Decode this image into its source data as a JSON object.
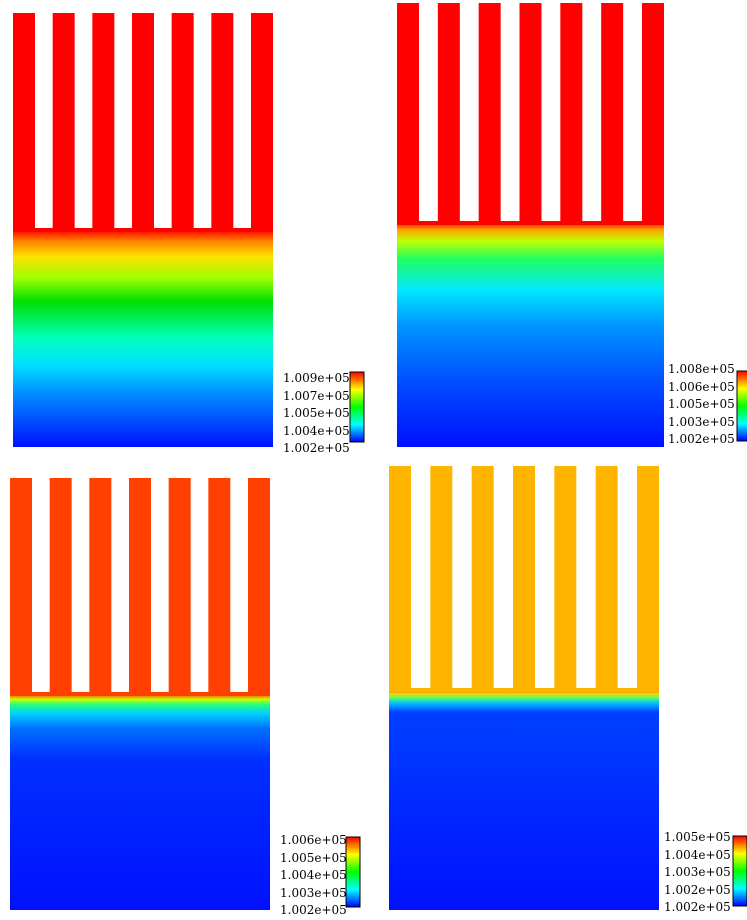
{
  "colormap": [
    "#0000ff",
    "#00ffff",
    "#00ff00",
    "#ffff00",
    "#ff0000"
  ],
  "panels": [
    {
      "id": "a",
      "colorbar_labels": [
        "1.009e+05",
        "1.007e+05",
        "1.005e+05",
        "1.004e+05",
        "1.002e+05"
      ],
      "fin_color": "#ff0000",
      "gradient_stops": [
        {
          "offset": 0.0,
          "color": "#ff0000"
        },
        {
          "offset": 0.05,
          "color": "#ff8000"
        },
        {
          "offset": 0.12,
          "color": "#ffe000"
        },
        {
          "offset": 0.22,
          "color": "#a0ff00"
        },
        {
          "offset": 0.33,
          "color": "#00e000"
        },
        {
          "offset": 0.5,
          "color": "#00ffc0"
        },
        {
          "offset": 0.62,
          "color": "#00e0ff"
        },
        {
          "offset": 0.75,
          "color": "#0090ff"
        },
        {
          "offset": 1.0,
          "color": "#0010ff"
        }
      ]
    },
    {
      "id": "b",
      "colorbar_labels": [
        "1.008e+05",
        "1.006e+05",
        "1.005e+05",
        "1.003e+05",
        "1.002e+05"
      ],
      "fin_color": "#ff0000",
      "gradient_stops": [
        {
          "offset": 0.0,
          "color": "#ff2000"
        },
        {
          "offset": 0.03,
          "color": "#ffa000"
        },
        {
          "offset": 0.08,
          "color": "#c0ff00"
        },
        {
          "offset": 0.16,
          "color": "#20ff60"
        },
        {
          "offset": 0.3,
          "color": "#00e8ff"
        },
        {
          "offset": 0.45,
          "color": "#0098ff"
        },
        {
          "offset": 0.7,
          "color": "#0050ff"
        },
        {
          "offset": 1.0,
          "color": "#0010ff"
        }
      ]
    },
    {
      "id": "c",
      "colorbar_labels": [
        "1.006e+05",
        "1.005e+05",
        "1.004e+05",
        "1.003e+05",
        "1.002e+05"
      ],
      "fin_color": "#ff4000",
      "gradient_stops": [
        {
          "offset": 0.0,
          "color": "#ff4000"
        },
        {
          "offset": 0.025,
          "color": "#c8ff00"
        },
        {
          "offset": 0.05,
          "color": "#20ff80"
        },
        {
          "offset": 0.09,
          "color": "#00d0ff"
        },
        {
          "offset": 0.16,
          "color": "#0070ff"
        },
        {
          "offset": 0.3,
          "color": "#0030ff"
        },
        {
          "offset": 1.0,
          "color": "#0010ff"
        }
      ]
    },
    {
      "id": "d",
      "colorbar_labels": [
        "1.005e+05",
        "1.004e+05",
        "1.003e+05",
        "1.002e+05",
        "1.002e+05"
      ],
      "fin_color": "#ffb400",
      "gradient_stops": [
        {
          "offset": 0.0,
          "color": "#ff3000"
        },
        {
          "offset": 0.015,
          "color": "#ffd000"
        },
        {
          "offset": 0.035,
          "color": "#60ff60"
        },
        {
          "offset": 0.06,
          "color": "#00c0ff"
        },
        {
          "offset": 0.1,
          "color": "#0040ff"
        },
        {
          "offset": 1.0,
          "color": "#0010ff"
        }
      ]
    }
  ]
}
